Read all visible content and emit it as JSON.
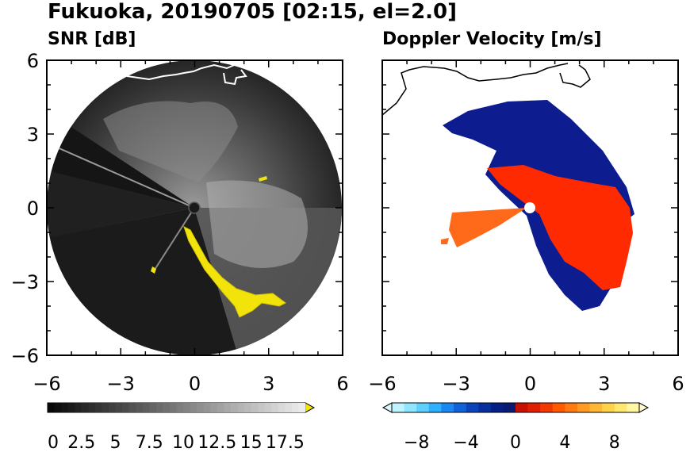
{
  "chart_data": [
    {
      "type": "heatmap",
      "title": "SNR [dB]",
      "x_ticks": [
        -6,
        -3,
        0,
        3,
        6
      ],
      "y_ticks": [
        6,
        3,
        0,
        -3,
        -6
      ],
      "xlim": [
        -6,
        6
      ],
      "ylim": [
        -6,
        6
      ],
      "x_tick_labels": [
        "−6",
        "−3",
        "0",
        "3",
        "6"
      ],
      "y_tick_labels": [
        "6",
        "3",
        "0",
        "−3",
        "−6"
      ],
      "colorbar": {
        "range": [
          0,
          19
        ],
        "labels": [
          "0",
          "2.5",
          "5",
          "7.5",
          "10",
          "12.5",
          "15",
          "17.5"
        ],
        "extend": "max",
        "low_color": "#000000",
        "high_color": "#f0f0f0",
        "over_color": "#f5e600"
      }
    },
    {
      "type": "heatmap",
      "title": "Doppler Velocity [m/s]",
      "x_ticks": [
        -6,
        -3,
        0,
        3,
        6
      ],
      "y_ticks": [
        6,
        3,
        0,
        -3,
        -6
      ],
      "xlim": [
        -6,
        6
      ],
      "ylim": [
        -6,
        6
      ],
      "x_tick_labels": [
        "−6",
        "−3",
        "0",
        "3",
        "6"
      ],
      "colorbar": {
        "range": [
          -10,
          10
        ],
        "labels": [
          "−8",
          "−4",
          "0",
          "4",
          "8"
        ],
        "extend": "both",
        "negative_color": "#0a1a8c",
        "positive_color": "#ff2a00"
      }
    }
  ],
  "figure": {
    "title": "Fukuoka, 20190705 [02:15, el=2.0]"
  }
}
